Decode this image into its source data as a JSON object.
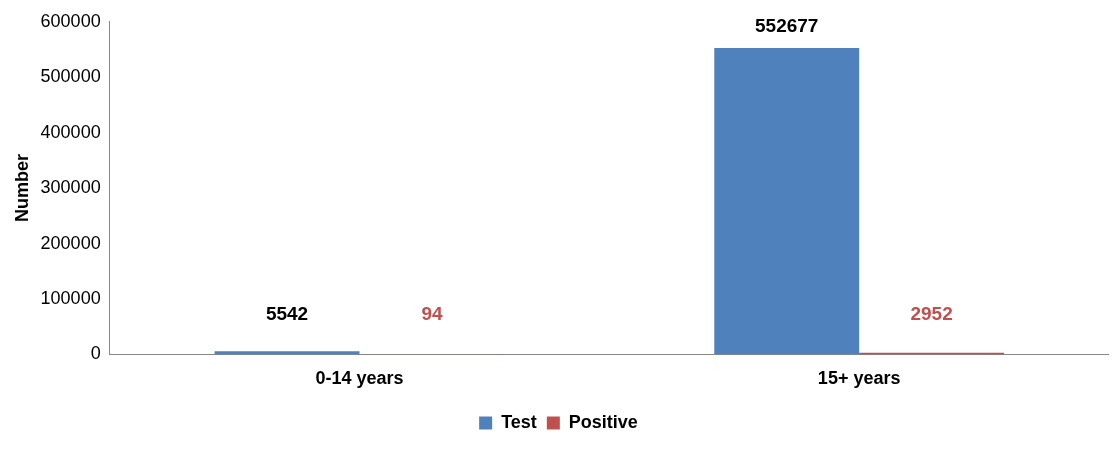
{
  "chart_data": {
    "type": "bar",
    "ylabel": "Number",
    "categories": [
      "0-14 years",
      "15+ years"
    ],
    "series": [
      {
        "name": "Test",
        "color": "#4f81bd",
        "values": [
          5542,
          552677
        ]
      },
      {
        "name": "Positive",
        "color": "#c0504d",
        "values": [
          94,
          2952
        ]
      }
    ],
    "ylim": [
      0,
      600000
    ],
    "yticks": [
      0,
      100000,
      200000,
      300000,
      400000,
      500000,
      600000
    ],
    "grid": false,
    "legend": "bottom",
    "data_labels": true
  }
}
